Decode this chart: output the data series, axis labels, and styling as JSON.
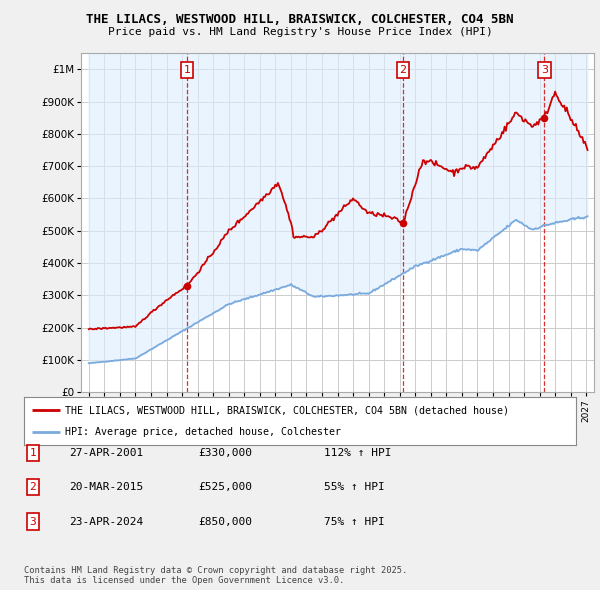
{
  "title": "THE LILACS, WESTWOOD HILL, BRAISWICK, COLCHESTER, CO4 5BN",
  "subtitle": "Price paid vs. HM Land Registry's House Price Index (HPI)",
  "legend_line1": "THE LILACS, WESTWOOD HILL, BRAISWICK, COLCHESTER, CO4 5BN (detached house)",
  "legend_line2": "HPI: Average price, detached house, Colchester",
  "footer": "Contains HM Land Registry data © Crown copyright and database right 2025.\nThis data is licensed under the Open Government Licence v3.0.",
  "sale_labels": [
    {
      "num": "1",
      "date": "27-APR-2001",
      "price": "£330,000",
      "hpi": "112% ↑ HPI"
    },
    {
      "num": "2",
      "date": "20-MAR-2015",
      "price": "£525,000",
      "hpi": "55% ↑ HPI"
    },
    {
      "num": "3",
      "date": "23-APR-2024",
      "price": "£850,000",
      "hpi": "75% ↑ HPI"
    }
  ],
  "sale_points": [
    {
      "year": 2001.32,
      "price": 330000
    },
    {
      "year": 2015.22,
      "price": 525000
    },
    {
      "year": 2024.31,
      "price": 850000
    }
  ],
  "sale_vlines_x": [
    2001.32,
    2015.22,
    2024.31
  ],
  "red_color": "#cc0000",
  "blue_color": "#7aaadd",
  "shade_color": "#ddeeff",
  "background_color": "#f0f0f0",
  "plot_bg_color": "#ffffff",
  "grid_color": "#cccccc",
  "ylim": [
    0,
    1050000
  ],
  "xlim": [
    1994.5,
    2027.5
  ],
  "yticks": [
    0,
    100000,
    200000,
    300000,
    400000,
    500000,
    600000,
    700000,
    800000,
    900000,
    1000000
  ],
  "ytick_labels": [
    "£0",
    "£100K",
    "£200K",
    "£300K",
    "£400K",
    "£500K",
    "£600K",
    "£700K",
    "£800K",
    "£900K",
    "£1M"
  ]
}
